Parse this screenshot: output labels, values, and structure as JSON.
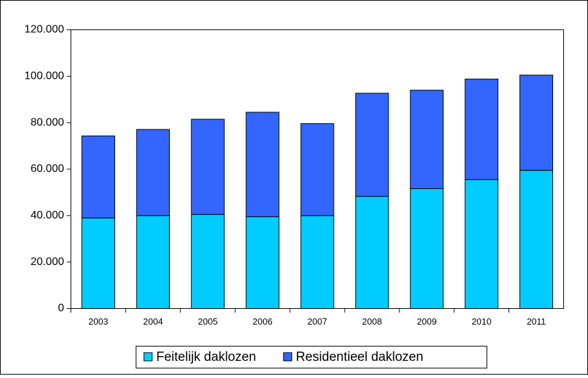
{
  "chart_data": {
    "type": "stacked-bar",
    "categories": [
      "2003",
      "2004",
      "2005",
      "2006",
      "2007",
      "2008",
      "2009",
      "2010",
      "2011"
    ],
    "series": [
      {
        "name": "Feitelijk daklozen",
        "color": "#00ccff",
        "values": [
          39000,
          40000,
          40500,
          39500,
          40000,
          48300,
          51600,
          55500,
          59500
        ]
      },
      {
        "name": "Residentieel daklozen",
        "color": "#3366ff",
        "values": [
          35300,
          37100,
          41000,
          45000,
          39600,
          44400,
          42400,
          43300,
          41000
        ]
      }
    ],
    "ylim": [
      0,
      120000
    ],
    "yticks": [
      0,
      {
        "value": 20000,
        "label": "20.000"
      },
      {
        "value": 40000,
        "label": "40.000"
      },
      {
        "value": 60000,
        "label": "60.000"
      },
      {
        "value": 80000,
        "label": "80.000"
      },
      {
        "value": 100000,
        "label": "100.000"
      },
      {
        "value": 120000,
        "label": "120.000"
      }
    ],
    "grid": false,
    "legend": "bottom"
  }
}
